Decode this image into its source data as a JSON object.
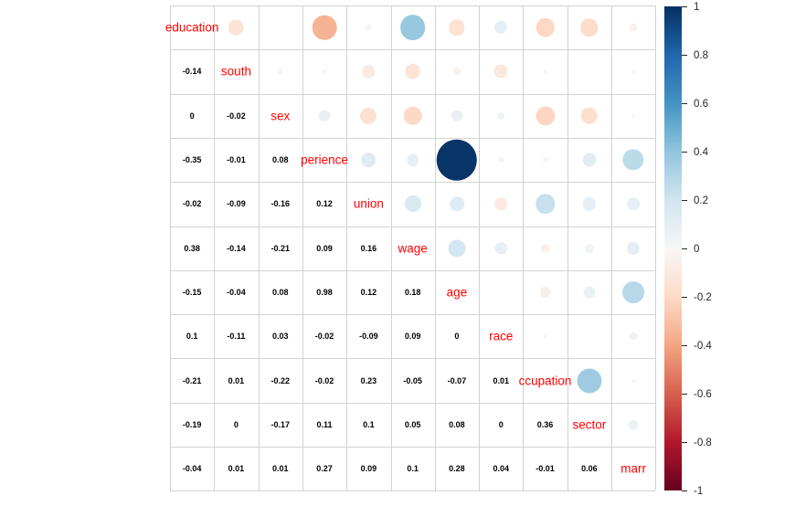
{
  "chart_data": {
    "type": "heatmap",
    "subtype": "correlation-matrix (corrplot mixed: numbers lower triangle, circles upper triangle, variable names on diagonal)",
    "title": "",
    "diagonal_labels": [
      "education",
      "south",
      "sex",
      "perience",
      "union",
      "wage",
      "age",
      "race",
      "ccupation",
      "sector",
      "marr"
    ],
    "lower_triangle_rows": [
      [
        -0.14
      ],
      [
        0,
        -0.02
      ],
      [
        -0.35,
        -0.01,
        0.08
      ],
      [
        -0.02,
        -0.09,
        -0.16,
        0.12
      ],
      [
        0.38,
        -0.14,
        -0.21,
        0.09,
        0.16
      ],
      [
        -0.15,
        -0.04,
        0.08,
        0.98,
        0.12,
        0.18
      ],
      [
        0.1,
        -0.11,
        0.03,
        -0.02,
        -0.09,
        0.09,
        0
      ],
      [
        -0.21,
        0.01,
        -0.22,
        -0.02,
        0.23,
        -0.05,
        -0.07,
        0.01
      ],
      [
        -0.19,
        0,
        -0.17,
        0.11,
        0.1,
        0.05,
        0.08,
        0,
        0.36
      ],
      [
        -0.04,
        0.01,
        0.01,
        0.27,
        0.09,
        0.1,
        0.28,
        0.04,
        -0.01,
        0.06
      ]
    ],
    "legend": {
      "position": "right",
      "max": 1,
      "min": -1,
      "tick_labels": [
        "1",
        "0.8",
        "0.6",
        "0.4",
        "0.2",
        "0",
        "-0.2",
        "-0.4",
        "-0.6",
        "-0.8",
        "-1"
      ]
    },
    "colors": {
      "diagonal_label": "#ff0000",
      "value_text": "#000000",
      "grid_line": "#d2d2d2",
      "background": "#ffffff",
      "tick_text": "#262626",
      "palette_neg_to_pos": [
        "#67001F",
        "#B2182B",
        "#D6604D",
        "#F4A582",
        "#FDDBC7",
        "#F7F7F7",
        "#D1E5F0",
        "#92C5DE",
        "#4393C3",
        "#2166AC",
        "#053061"
      ]
    },
    "layout_hints": {
      "grid": "on",
      "circle_area_scales_with_abs_r": true
    }
  }
}
